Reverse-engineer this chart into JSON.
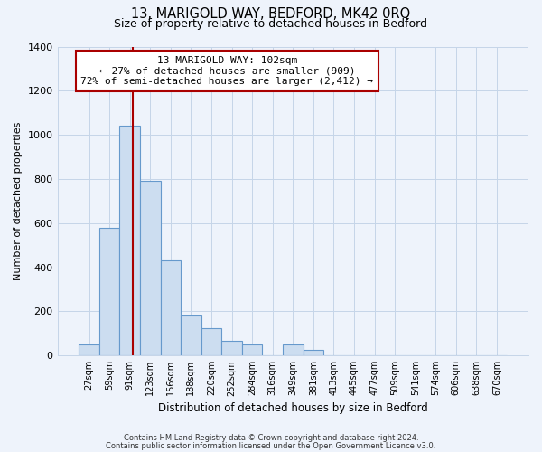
{
  "title_main": "13, MARIGOLD WAY, BEDFORD, MK42 0RQ",
  "title_sub": "Size of property relative to detached houses in Bedford",
  "xlabel": "Distribution of detached houses by size in Bedford",
  "ylabel": "Number of detached properties",
  "bar_color": "#ccddf0",
  "bar_edge_color": "#6699cc",
  "vline_color": "#aa0000",
  "annotation_title": "13 MARIGOLD WAY: 102sqm",
  "annotation_line1": "← 27% of detached houses are smaller (909)",
  "annotation_line2": "72% of semi-detached houses are larger (2,412) →",
  "categories": [
    "27sqm",
    "59sqm",
    "91sqm",
    "123sqm",
    "156sqm",
    "188sqm",
    "220sqm",
    "252sqm",
    "284sqm",
    "316sqm",
    "349sqm",
    "381sqm",
    "413sqm",
    "445sqm",
    "477sqm",
    "509sqm",
    "541sqm",
    "574sqm",
    "606sqm",
    "638sqm",
    "670sqm"
  ],
  "values": [
    50,
    580,
    1040,
    790,
    430,
    180,
    125,
    65,
    50,
    0,
    48,
    25,
    0,
    0,
    0,
    0,
    0,
    0,
    0,
    0,
    0
  ],
  "ylim": [
    0,
    1400
  ],
  "yticks": [
    0,
    200,
    400,
    600,
    800,
    1000,
    1200,
    1400
  ],
  "footnote1": "Contains HM Land Registry data © Crown copyright and database right 2024.",
  "footnote2": "Contains public sector information licensed under the Open Government Licence v3.0.",
  "bg_color": "#eef3fb",
  "plot_bg_color": "#eef3fb",
  "grid_color": "#c5d5e8"
}
